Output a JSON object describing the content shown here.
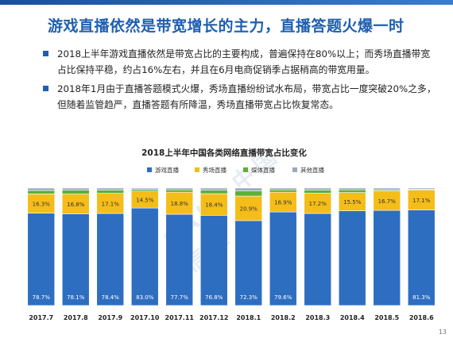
{
  "slide": {
    "title": "游戏直播依然是带宽增长的主力，直播答题火爆一时",
    "bullets": [
      "2018上半年游戏直播依然是带宽占比的主要构成，普遍保持在80%以上；而秀场直播带宽占比保持平稳，约占16%左右，并且在6月电商促销季占据稍高的带宽用量。",
      "2018年1月由于直播答题模式火爆，秀场直播纷纷试水布局，带宽占比一度突破20%之多，但随着监管趋严，直播答题有所降温，秀场直播带宽占比恢复常态。"
    ],
    "page_number": "13"
  },
  "colors": {
    "accent": "#1f5fb0",
    "game": "#2e6ec0",
    "show": "#f5bd19",
    "media": "#5fb039",
    "other": "#9aa9bd"
  },
  "chart_data": {
    "type": "bar",
    "stacked": true,
    "percent": true,
    "title": "2018上半年中国各类网络直播带宽占比变化",
    "categories": [
      "2017.7",
      "2017.8",
      "2017.9",
      "2017.10",
      "2017.11",
      "2017.12",
      "2018.1",
      "2018.2",
      "2018.3",
      "2018.4",
      "2018.5",
      "2018.6"
    ],
    "series": [
      {
        "name": "游戏直播",
        "color": "#2e6ec0",
        "values": [
          78.7,
          78.1,
          78.4,
          83.0,
          77.7,
          76.8,
          72.3,
          79.6,
          78.4,
          80.7,
          81.0,
          81.3
        ],
        "labels": [
          "78.7%",
          "78.1%",
          "78.4%",
          "83.0%",
          "77.7%",
          "76.8%",
          "72.3%",
          "79.6%",
          "",
          "",
          "",
          "81.3%"
        ]
      },
      {
        "name": "秀场直播",
        "color": "#f5bd19",
        "values": [
          16.3,
          16.8,
          17.1,
          14.5,
          18.8,
          18.4,
          20.9,
          16.9,
          17.2,
          15.5,
          16.7,
          17.1
        ],
        "labels": [
          "16.3%",
          "16.8%",
          "17.1%",
          "14.5%",
          "18.8%",
          "18.4%",
          "20.9%",
          "16.9%",
          "17.2%",
          "15.5%",
          "16.7%",
          "17.1%"
        ]
      },
      {
        "name": "媒体直播",
        "color": "#5fb039",
        "values": [
          3.0,
          3.3,
          2.9,
          1.5,
          2.0,
          3.0,
          4.5,
          2.0,
          2.8,
          2.3,
          1.0,
          0.6
        ]
      },
      {
        "name": "其他直播",
        "color": "#9aa9bd",
        "values": [
          2.0,
          1.8,
          1.6,
          1.0,
          1.5,
          1.8,
          2.3,
          1.5,
          1.6,
          1.5,
          1.3,
          1.0
        ]
      }
    ],
    "legend_position": "top",
    "ylim": [
      0,
      100
    ],
    "grid": false
  }
}
